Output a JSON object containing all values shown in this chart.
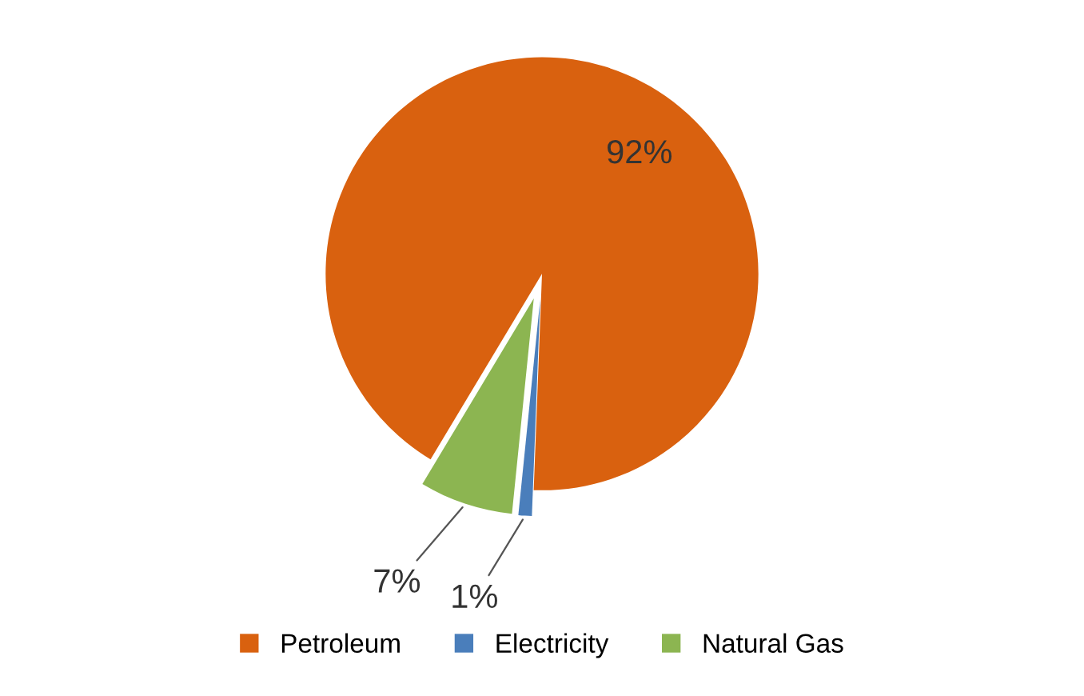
{
  "chart_data": {
    "type": "pie",
    "categories": [
      "Petroleum",
      "Electricity",
      "Natural Gas"
    ],
    "values": [
      92,
      1,
      7
    ],
    "value_labels": [
      "92%",
      "1%",
      "7%"
    ],
    "colors": [
      "#d9610f",
      "#4a7ebb",
      "#8cb551"
    ],
    "legend": "bottom"
  }
}
